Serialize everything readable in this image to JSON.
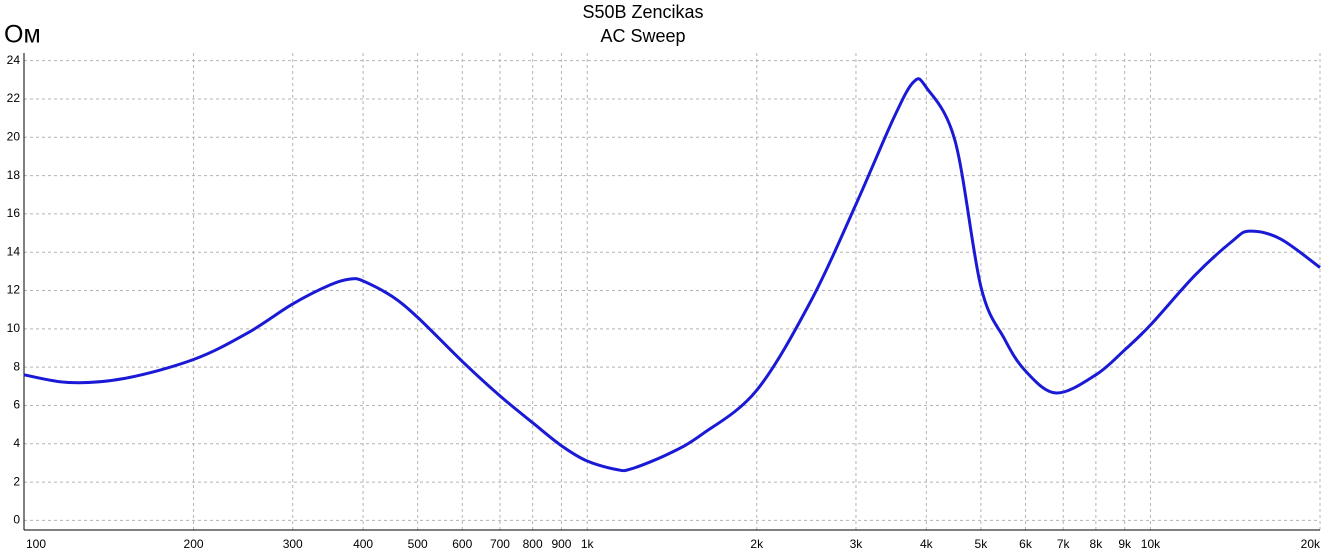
{
  "chart_data": {
    "type": "line",
    "title": "S50B Zencikas",
    "subtitle": "AC Sweep",
    "y_label": "Ом",
    "xscale": "log",
    "grid": true,
    "x": [
      100,
      120,
      150,
      200,
      250,
      300,
      350,
      380,
      400,
      450,
      500,
      600,
      700,
      800,
      900,
      1000,
      1130,
      1200,
      1400,
      1600,
      2000,
      2500,
      3000,
      3500,
      3800,
      4000,
      4500,
      5000,
      5500,
      6000,
      6800,
      8000,
      9000,
      10000,
      12000,
      14000,
      15000,
      17000,
      20000
    ],
    "series": [
      {
        "name": "S50B Zencikas",
        "color": "#1a1ad6",
        "values": [
          7.6,
          7.2,
          7.4,
          8.4,
          9.8,
          11.3,
          12.3,
          12.6,
          12.5,
          11.7,
          10.6,
          8.3,
          6.5,
          5.1,
          3.9,
          3.1,
          2.65,
          2.7,
          3.5,
          4.5,
          6.8,
          11.5,
          16.5,
          21,
          22.9,
          22.6,
          19.8,
          12.2,
          9.5,
          7.8,
          6.65,
          7.6,
          8.9,
          10.2,
          12.8,
          14.6,
          15.1,
          14.7,
          13.2
        ]
      }
    ],
    "xlim": [
      100,
      20000
    ],
    "xticks": [
      100,
      200,
      300,
      400,
      500,
      600,
      700,
      800,
      900,
      {
        "value": 1000,
        "label": "1k"
      },
      {
        "value": 2000,
        "label": "2k"
      },
      {
        "value": 3000,
        "label": "3k"
      },
      {
        "value": 4000,
        "label": "4k"
      },
      {
        "value": 5000,
        "label": "5k"
      },
      {
        "value": 6000,
        "label": "6k"
      },
      {
        "value": 7000,
        "label": "7k"
      },
      {
        "value": 8000,
        "label": "8k"
      },
      {
        "value": 9000,
        "label": "9k"
      },
      {
        "value": 10000,
        "label": "10k"
      },
      {
        "value": 20000,
        "label": "20k"
      }
    ],
    "ylim": [
      -0.5,
      24.4
    ],
    "yticks": [
      0,
      2,
      4,
      6,
      8,
      10,
      12,
      14,
      16,
      18,
      20,
      22,
      24
    ]
  }
}
